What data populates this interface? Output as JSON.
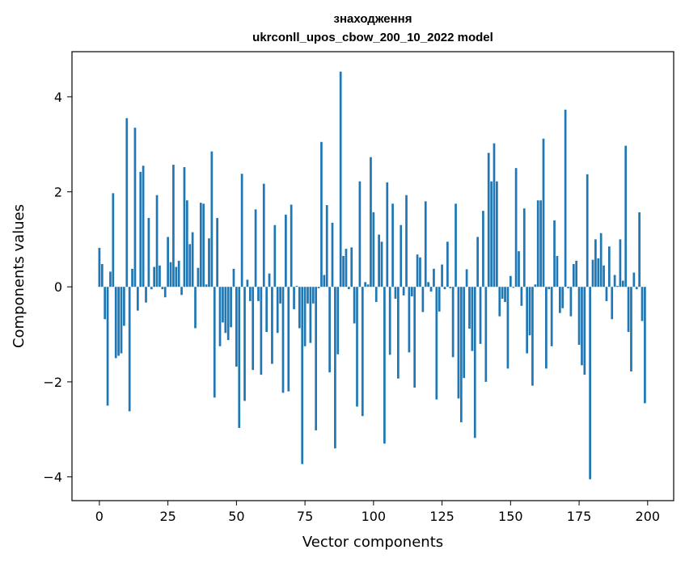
{
  "chart_data": {
    "type": "bar",
    "title_line1": "знаходження",
    "title_line2": "ukrconll_upos_cbow_200_10_2022 model",
    "xlabel": "Vector components",
    "ylabel": "Components values",
    "xlim": [
      -10,
      209.5
    ],
    "ylim": [
      -4.5,
      4.95
    ],
    "xticks": [
      0,
      25,
      50,
      75,
      100,
      125,
      150,
      175,
      200
    ],
    "yticks": [
      -4,
      -2,
      0,
      2,
      4
    ],
    "ytick_labels": [
      "−4",
      "−2",
      "0",
      "2",
      "4"
    ],
    "grid": false,
    "bar_color": "#1f77b4",
    "values": [
      0.82,
      0.48,
      -0.68,
      -2.5,
      0.32,
      1.97,
      -1.5,
      -1.45,
      -1.4,
      -0.82,
      3.55,
      -2.62,
      0.38,
      3.35,
      -0.5,
      2.42,
      2.55,
      -0.33,
      1.45,
      -0.05,
      0.42,
      1.93,
      0.45,
      -0.05,
      -0.22,
      1.05,
      0.52,
      2.57,
      0.42,
      0.55,
      -0.17,
      2.52,
      1.82,
      0.9,
      1.15,
      -0.87,
      0.4,
      1.77,
      1.75,
      0.05,
      1.02,
      2.85,
      -2.33,
      1.45,
      -1.25,
      -0.75,
      -0.97,
      -1.12,
      -0.85,
      0.38,
      -1.68,
      -2.97,
      2.38,
      -2.4,
      0.15,
      -0.3,
      -1.75,
      1.63,
      -0.3,
      -1.85,
      2.17,
      -0.95,
      0.28,
      -1.62,
      1.3,
      -0.97,
      -0.35,
      -2.23,
      1.52,
      -2.2,
      1.73,
      -0.47,
      0.02,
      -0.87,
      -3.73,
      -1.25,
      -0.35,
      -1.18,
      -0.35,
      -3.02,
      -0.03,
      3.05,
      0.25,
      1.72,
      -1.8,
      1.35,
      -3.4,
      -1.42,
      4.53,
      0.65,
      0.8,
      -0.05,
      0.83,
      -0.77,
      -2.52,
      2.22,
      -2.72,
      0.1,
      0.05,
      2.73,
      1.57,
      -0.32,
      1.1,
      0.95,
      -3.3,
      2.2,
      -1.43,
      1.75,
      -0.25,
      -1.93,
      1.3,
      -0.18,
      1.93,
      -1.38,
      -0.2,
      -2.12,
      0.68,
      0.62,
      -0.53,
      1.8,
      0.1,
      -0.1,
      0.38,
      -2.37,
      -0.52,
      0.47,
      -0.05,
      0.95,
      -0.03,
      -1.48,
      1.75,
      -2.35,
      -2.85,
      -1.92,
      0.37,
      -0.88,
      -1.35,
      -3.18,
      1.05,
      -1.2,
      1.6,
      -2.0,
      2.82,
      2.22,
      3.02,
      2.22,
      -0.62,
      -0.25,
      -0.32,
      -1.72,
      0.23,
      -0.02,
      2.5,
      0.75,
      -0.4,
      1.65,
      -1.4,
      -1.02,
      -2.08,
      0.05,
      1.82,
      1.82,
      3.12,
      -1.72,
      -0.05,
      -1.25,
      1.4,
      0.65,
      -0.55,
      -0.45,
      3.73,
      -0.03,
      -0.62,
      0.48,
      0.55,
      -1.22,
      -1.65,
      -1.85,
      2.37,
      -4.05,
      0.57,
      1.0,
      0.6,
      1.13,
      0.45,
      -0.3,
      0.85,
      -0.68,
      0.25,
      0.02,
      1.0,
      0.13,
      2.97,
      -0.95,
      -1.78,
      0.3,
      -0.05,
      1.57,
      -0.72,
      -2.45
    ]
  }
}
